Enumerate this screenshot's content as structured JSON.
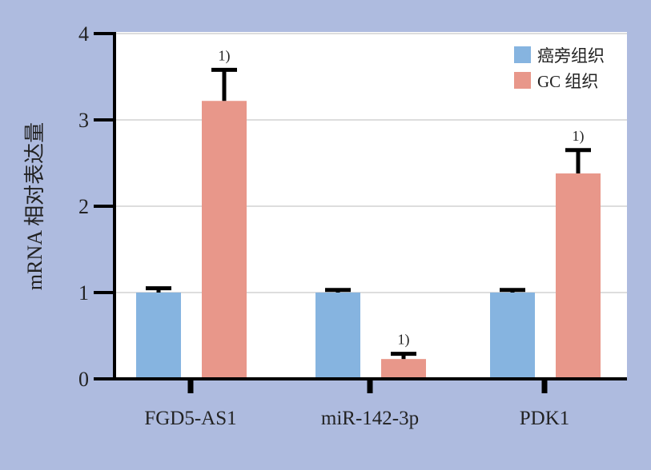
{
  "chart_data": {
    "type": "bar",
    "title": "",
    "xlabel": "",
    "ylabel": "mRNA 相对表达量",
    "ylim": [
      0,
      4
    ],
    "yticks": [
      "0",
      "1",
      "2",
      "3",
      "4"
    ],
    "grid": true,
    "legend_position": "top-right",
    "categories": [
      "FGD5-AS1",
      "miR-142-3p",
      "PDK1"
    ],
    "series": [
      {
        "name": "癌旁组织",
        "color": "#86b4e0",
        "values": [
          1.0,
          1.0,
          1.0
        ],
        "errors": [
          0.05,
          0.03,
          0.03
        ],
        "annotations": [
          "",
          "",
          ""
        ]
      },
      {
        "name": "GC 组织",
        "color": "#e8978a",
        "values": [
          3.22,
          0.23,
          2.38
        ],
        "errors": [
          0.36,
          0.06,
          0.27
        ],
        "annotations": [
          "1)",
          "1)",
          "1)"
        ]
      }
    ]
  }
}
